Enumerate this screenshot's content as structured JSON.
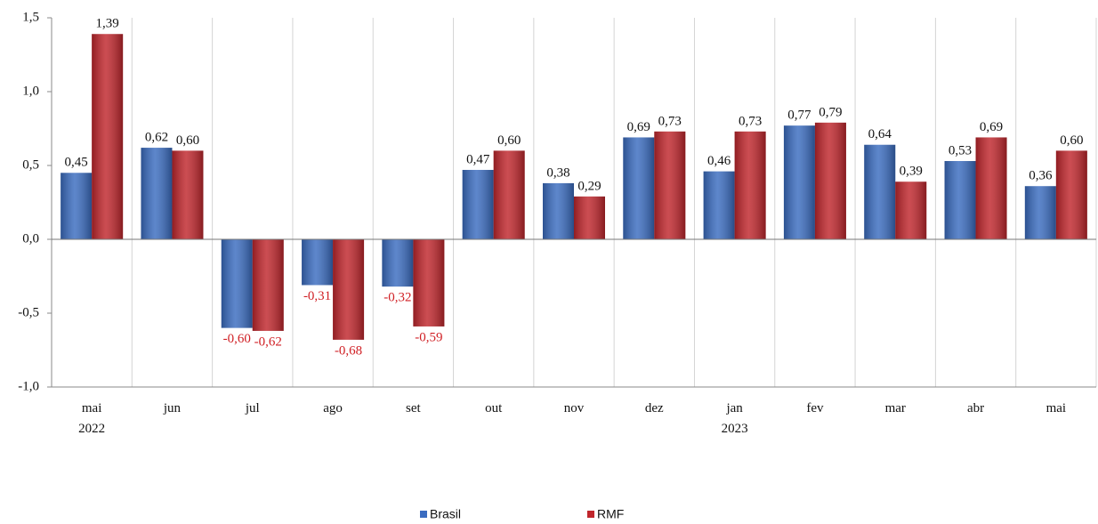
{
  "chart_data": {
    "type": "bar",
    "categories": [
      "mai\n2022",
      "jun",
      "jul",
      "ago",
      "set",
      "out",
      "nov",
      "dez",
      "jan\n2023",
      "fev",
      "mar",
      "abr",
      "mai"
    ],
    "series": [
      {
        "name": "Brasil",
        "color": "#3a6cc0",
        "values": [
          0.45,
          0.62,
          -0.6,
          -0.31,
          -0.32,
          0.47,
          0.38,
          0.69,
          0.46,
          0.77,
          0.64,
          0.53,
          0.36
        ],
        "value_labels": [
          "0,45",
          "0,62",
          "-0,60",
          "-0,31",
          "-0,32",
          "0,47",
          "0,38",
          "0,69",
          "0,46",
          "0,77",
          "0,64",
          "0,53",
          "0,36"
        ]
      },
      {
        "name": "RMF",
        "color": "#c0262c",
        "values": [
          1.39,
          0.6,
          -0.62,
          -0.68,
          -0.59,
          0.6,
          0.29,
          0.73,
          0.73,
          0.79,
          0.39,
          0.69,
          0.6
        ],
        "value_labels": [
          "1,39",
          "0,60",
          "-0,62",
          "-0,68",
          "-0,59",
          "0,60",
          "0,29",
          "0,73",
          "0,73",
          "0,79",
          "0,39",
          "0,69",
          "0,60"
        ]
      }
    ],
    "ylim": [
      -1.0,
      1.5
    ],
    "yticks": [
      {
        "value": -1.0,
        "label": "-1,0"
      },
      {
        "value": -0.5,
        "label": "-0,5"
      },
      {
        "value": 0.0,
        "label": "0,0"
      },
      {
        "value": 0.5,
        "label": "0,5"
      },
      {
        "value": 1.0,
        "label": "1,0"
      },
      {
        "value": 1.5,
        "label": "1,5"
      }
    ],
    "negative_label_color": "#d01f24",
    "legend": "bottom"
  }
}
